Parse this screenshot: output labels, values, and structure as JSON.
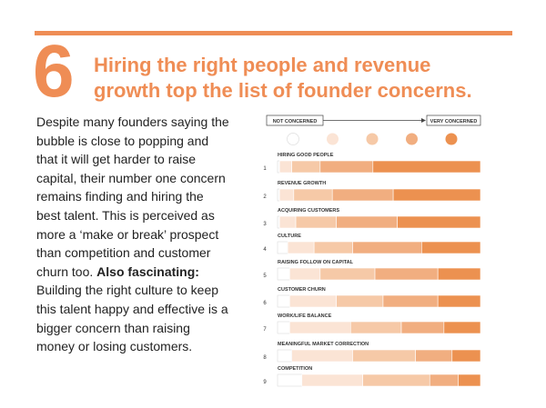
{
  "header": {
    "number": "6",
    "title_lines": [
      "Hiring the right people and revenue",
      "growth top the list of founder concerns."
    ]
  },
  "body": {
    "lines": [
      "Despite many founders saying the",
      "bubble is close to popping and",
      "that it will get harder to raise",
      "capital, their number one concern",
      "remains finding and hiring the",
      "best talent. This is perceived as",
      "more a ‘make or break’ prospect",
      "than competition and customer",
      [
        "churn too.",
        "Also fascinating:"
      ],
      "Building the right culture to keep",
      "this talent happy and effective is a",
      "bigger concern than raising",
      "money or losing customers."
    ]
  },
  "chart_data": {
    "type": "bar",
    "orientation": "horizontal",
    "stacked": true,
    "legend_labels": [
      "NOT CONCERNED",
      "VERY CONCERNED"
    ],
    "categories": [
      "HIRING GOOD PEOPLE",
      "REVENUE GROWTH",
      "ACQUIRING CUSTOMERS",
      "CULTURE",
      "RAISING FOLLOW ON CAPITAL",
      "CUSTOMER CHURN",
      "WORK/LIFE BALANCE",
      "MEANINGFUL MARKET CORRECTION",
      "COMPETITION"
    ],
    "row_numbers": [
      1,
      2,
      3,
      4,
      5,
      6,
      7,
      8,
      9
    ],
    "xlim": [
      0,
      100
    ],
    "series": [
      {
        "color": "#ffffff",
        "values": [
          1,
          1,
          1,
          5,
          6,
          6,
          6,
          7,
          12
        ]
      },
      {
        "color": "#fbe4d5",
        "values": [
          6,
          7,
          8,
          13,
          15,
          23,
          30,
          30,
          30
        ]
      },
      {
        "color": "#f6c9a7",
        "values": [
          14,
          19,
          20,
          19,
          27,
          23,
          25,
          31,
          33
        ]
      },
      {
        "color": "#f1ae80",
        "values": [
          26,
          30,
          30,
          34,
          31,
          27,
          21,
          18,
          14
        ]
      },
      {
        "color": "#ec9150",
        "values": [
          53,
          43,
          41,
          29,
          21,
          21,
          18,
          14,
          11
        ]
      }
    ]
  }
}
